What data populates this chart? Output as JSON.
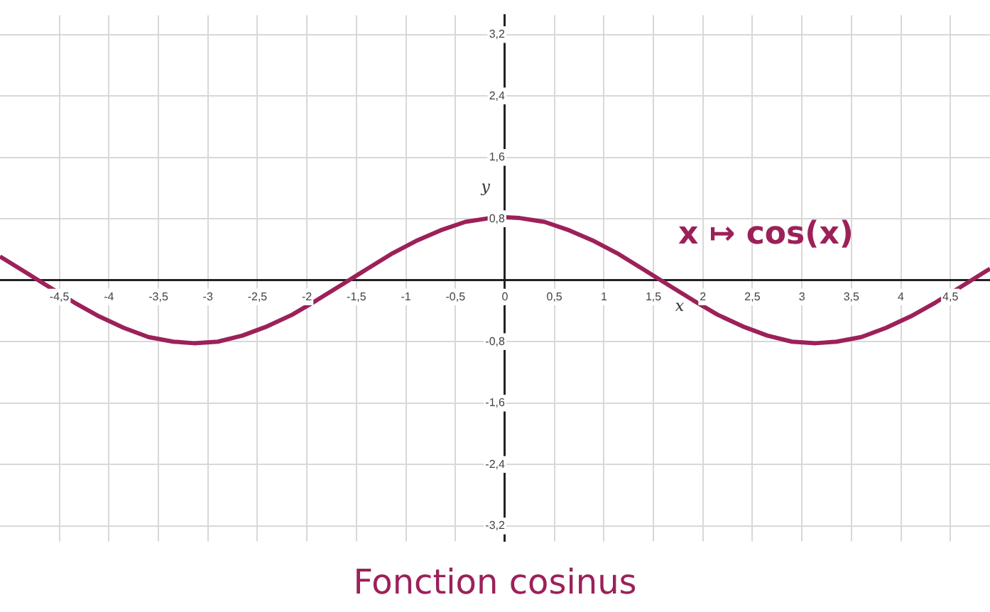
{
  "chart_data": {
    "type": "line",
    "title": "Fonction cosinus",
    "xlabel": "x",
    "ylabel": "y",
    "annotations": [
      "x ↦ cos(x)"
    ],
    "x": [
      -5.1,
      -4.85,
      -4.6,
      -4.35,
      -4.1,
      -3.85,
      -3.6,
      -3.35,
      -3.14,
      -2.9,
      -2.65,
      -2.4,
      -2.15,
      -1.9,
      -1.65,
      -1.4,
      -1.15,
      -0.9,
      -0.65,
      -0.4,
      -0.15,
      0,
      0.15,
      0.4,
      0.65,
      0.9,
      1.15,
      1.4,
      1.65,
      1.9,
      2.15,
      2.4,
      2.65,
      2.9,
      3.14,
      3.35,
      3.6,
      3.85,
      4.1,
      4.35,
      4.6,
      4.85,
      4.9
    ],
    "series": [
      {
        "color": "#9c2159",
        "values": [
          0.31,
          0.11,
          -0.09,
          -0.29,
          -0.47,
          -0.62,
          -0.74,
          -0.8,
          -0.82,
          -0.8,
          -0.72,
          -0.6,
          -0.45,
          -0.26,
          -0.06,
          0.14,
          0.34,
          0.51,
          0.65,
          0.76,
          0.81,
          0.82,
          0.81,
          0.76,
          0.65,
          0.51,
          0.34,
          0.14,
          -0.06,
          -0.26,
          -0.45,
          -0.6,
          -0.72,
          -0.8,
          -0.82,
          -0.8,
          -0.74,
          -0.62,
          -0.47,
          -0.29,
          -0.09,
          0.11,
          0.15
        ]
      }
    ],
    "xlim": [
      -5.1,
      4.9
    ],
    "ylim": [
      -3.4,
      3.45
    ],
    "xticks": [
      {
        "value": -4.5,
        "label": "-4,5"
      },
      -4,
      {
        "value": -3.5,
        "label": "-3,5"
      },
      -3,
      {
        "value": -2.5,
        "label": "-2,5"
      },
      -2,
      {
        "value": -1.5,
        "label": "-1,5"
      },
      -1,
      {
        "value": -0.5,
        "label": "-0,5"
      },
      0,
      {
        "value": 0.5,
        "label": "0,5"
      },
      1,
      {
        "value": 1.5,
        "label": "1,5"
      },
      2,
      {
        "value": 2.5,
        "label": "2,5"
      },
      3,
      {
        "value": 3.5,
        "label": "3,5"
      },
      4,
      {
        "value": 4.5,
        "label": "4,5"
      }
    ],
    "yticks": [
      {
        "value": -3.2,
        "label": "-3,2"
      },
      {
        "value": -2.4,
        "label": "-2,4"
      },
      {
        "value": -1.6,
        "label": "-1,6"
      },
      {
        "value": -0.8,
        "label": "-0,8"
      },
      {
        "value": 0.8,
        "label": "0,8"
      },
      {
        "value": 1.6,
        "label": "1,6"
      },
      {
        "value": 2.4,
        "label": "2,4"
      },
      {
        "value": 3.2,
        "label": "3,2"
      }
    ],
    "grid": true,
    "legend": false,
    "marker": "none",
    "line_style": "solid"
  }
}
